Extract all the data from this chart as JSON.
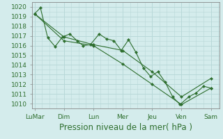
{
  "xlabel": "Pression niveau de la mer( hPa )",
  "background_color": "#d4ecec",
  "grid_color": "#b8d8d8",
  "line_color": "#2d6e2d",
  "ylim": [
    1009.5,
    1020.5
  ],
  "xlim": [
    -0.15,
    12.6
  ],
  "day_labels": [
    "LuMar",
    "Dim",
    "Lun",
    "Mer",
    "Jeu",
    "Ven",
    "Sam"
  ],
  "day_positions": [
    0.0,
    2.0,
    4.0,
    6.0,
    8.0,
    10.0,
    12.0
  ],
  "series1": [
    [
      0.0,
      1019.3
    ],
    [
      0.4,
      1019.9
    ],
    [
      0.9,
      1016.8
    ],
    [
      1.4,
      1015.9
    ],
    [
      1.9,
      1016.9
    ],
    [
      2.4,
      1017.2
    ],
    [
      2.9,
      1016.5
    ],
    [
      3.3,
      1016.0
    ],
    [
      3.8,
      1016.1
    ],
    [
      4.4,
      1017.2
    ],
    [
      4.9,
      1016.7
    ],
    [
      5.4,
      1016.5
    ],
    [
      5.9,
      1015.5
    ],
    [
      6.4,
      1016.6
    ],
    [
      6.9,
      1015.3
    ],
    [
      7.4,
      1013.7
    ],
    [
      7.9,
      1012.8
    ],
    [
      8.4,
      1013.3
    ],
    [
      8.9,
      1012.2
    ],
    [
      9.4,
      1010.7
    ],
    [
      9.9,
      1009.9
    ],
    [
      10.5,
      1010.7
    ],
    [
      11.0,
      1011.1
    ],
    [
      11.5,
      1011.8
    ],
    [
      12.0,
      1011.6
    ]
  ],
  "series2": [
    [
      0.0,
      1019.3
    ],
    [
      2.0,
      1016.9
    ],
    [
      4.0,
      1016.1
    ],
    [
      6.0,
      1015.5
    ],
    [
      8.0,
      1013.3
    ],
    [
      10.0,
      1010.7
    ],
    [
      12.0,
      1012.6
    ]
  ],
  "series3": [
    [
      0.0,
      1019.3
    ],
    [
      2.0,
      1016.5
    ],
    [
      4.0,
      1016.0
    ],
    [
      6.0,
      1014.1
    ],
    [
      8.0,
      1012.0
    ],
    [
      10.0,
      1009.9
    ],
    [
      12.0,
      1011.6
    ]
  ],
  "yticks": [
    1010,
    1011,
    1012,
    1013,
    1014,
    1015,
    1016,
    1017,
    1018,
    1019,
    1020
  ],
  "spine_color": "#888888",
  "tick_label_color": "#2d6e2d",
  "xlabel_color": "#2d6e2d",
  "xlabel_fontsize": 8.5,
  "tick_fontsize": 6.5
}
